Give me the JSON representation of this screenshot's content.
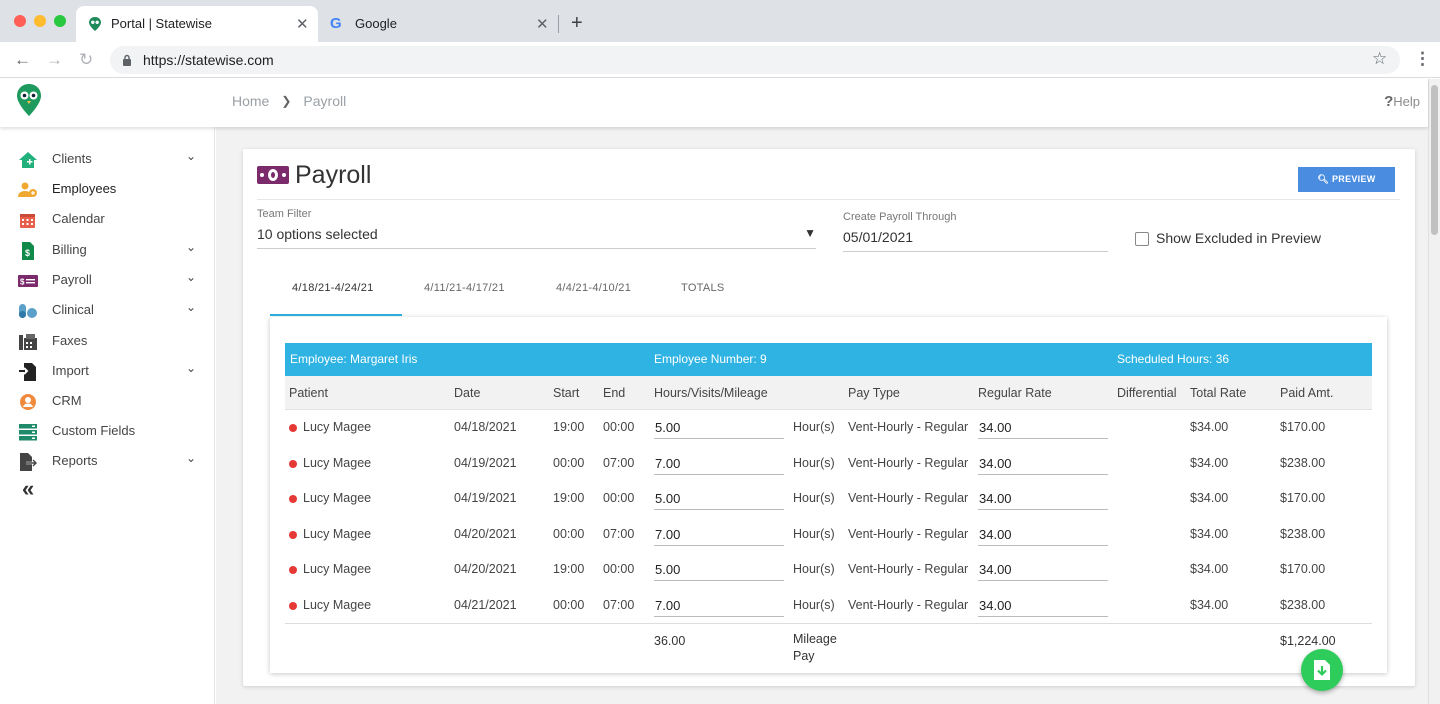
{
  "browser": {
    "tabs": [
      {
        "title": "Portal | Statewise"
      },
      {
        "title": "Google"
      }
    ],
    "url": "https://statewise.com"
  },
  "header": {
    "breadcrumb": [
      "Home",
      "Payroll"
    ],
    "help_label": "Help"
  },
  "sidebar": {
    "items": [
      {
        "label": "Clients",
        "icon": "house-icon",
        "color": "#22b07d"
      },
      {
        "label": "Employees",
        "icon": "users-icon",
        "color": "#f0a830"
      },
      {
        "label": "Calendar",
        "icon": "calendar-icon",
        "color": "#e8604c"
      },
      {
        "label": "Billing",
        "icon": "file-dollar-icon",
        "color": "#0f8a4a"
      },
      {
        "label": "Payroll",
        "icon": "payroll-icon",
        "color": "#7b2a6b"
      },
      {
        "label": "Clinical",
        "icon": "pills-icon",
        "color": "#5aa0c8"
      },
      {
        "label": "Faxes",
        "icon": "fax-icon",
        "color": "#444444"
      },
      {
        "label": "Import",
        "icon": "import-icon",
        "color": "#222222"
      },
      {
        "label": "CRM",
        "icon": "user-circle-icon",
        "color": "#f08a3c"
      },
      {
        "label": "Custom Fields",
        "icon": "server-icon",
        "color": "#1f8a6a"
      },
      {
        "label": "Reports",
        "icon": "file-export-icon",
        "color": "#444444"
      }
    ]
  },
  "page": {
    "title": "Payroll",
    "preview_label": "PREVIEW",
    "team_filter": {
      "label": "Team Filter",
      "value": "10 options selected"
    },
    "payroll_through": {
      "label": "Create Payroll Through",
      "value": "05/01/2021"
    },
    "show_excluded_label": "Show Excluded in Preview",
    "tabs": [
      "4/18/21-4/24/21",
      "4/11/21-4/17/21",
      "4/4/21-4/10/21",
      "TOTALS"
    ]
  },
  "employee": {
    "name_label": "Employee: Margaret Iris",
    "number_label": "Employee Number: 9",
    "scheduled_label": "Scheduled Hours: 36"
  },
  "table": {
    "columns": [
      "Patient",
      "Date",
      "Start",
      "End",
      "Hours/Visits/Mileage",
      "Pay Type",
      "Regular Rate",
      "Differential",
      "Total Rate",
      "Paid Amt."
    ],
    "rows": [
      {
        "patient": "Lucy Magee",
        "date": "04/18/2021",
        "start": "19:00",
        "end": "00:00",
        "hours": "5.00",
        "unit": "Hour(s)",
        "pay_type": "Vent-Hourly - Regular",
        "rate": "34.00",
        "total_rate": "$34.00",
        "paid": "$170.00"
      },
      {
        "patient": "Lucy Magee",
        "date": "04/19/2021",
        "start": "00:00",
        "end": "07:00",
        "hours": "7.00",
        "unit": "Hour(s)",
        "pay_type": "Vent-Hourly - Regular",
        "rate": "34.00",
        "total_rate": "$34.00",
        "paid": "$238.00"
      },
      {
        "patient": "Lucy Magee",
        "date": "04/19/2021",
        "start": "19:00",
        "end": "00:00",
        "hours": "5.00",
        "unit": "Hour(s)",
        "pay_type": "Vent-Hourly - Regular",
        "rate": "34.00",
        "total_rate": "$34.00",
        "paid": "$170.00"
      },
      {
        "patient": "Lucy Magee",
        "date": "04/20/2021",
        "start": "00:00",
        "end": "07:00",
        "hours": "7.00",
        "unit": "Hour(s)",
        "pay_type": "Vent-Hourly - Regular",
        "rate": "34.00",
        "total_rate": "$34.00",
        "paid": "$238.00"
      },
      {
        "patient": "Lucy Magee",
        "date": "04/20/2021",
        "start": "19:00",
        "end": "00:00",
        "hours": "5.00",
        "unit": "Hour(s)",
        "pay_type": "Vent-Hourly - Regular",
        "rate": "34.00",
        "total_rate": "$34.00",
        "paid": "$170.00"
      },
      {
        "patient": "Lucy Magee",
        "date": "04/21/2021",
        "start": "00:00",
        "end": "07:00",
        "hours": "7.00",
        "unit": "Hour(s)",
        "pay_type": "Vent-Hourly - Regular",
        "rate": "34.00",
        "total_rate": "$34.00",
        "paid": "$238.00"
      }
    ],
    "totals": {
      "hours": "36.00",
      "mileage_label": "Mileage Pay",
      "paid": "$1,224.00"
    }
  },
  "colors": {
    "accent": "#2eb3e3",
    "preview": "#4a8de0",
    "download": "#2ecc5b",
    "payroll": "#7b2a6b"
  }
}
